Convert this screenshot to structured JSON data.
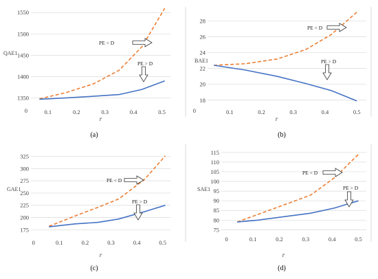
{
  "colors": {
    "upper_series": "#ed7d31",
    "lower_series": "#4472c4",
    "grid": "#d9d9d9",
    "axis": "#bfbfbf"
  },
  "chart_data": [
    {
      "panel": "(a)",
      "type": "line",
      "ylabel": "QAE1",
      "xlabel": "r",
      "xticks": [
        "0.1",
        "0.2",
        "0.3",
        "0.4",
        "0.5"
      ],
      "yticks": [
        "1350",
        "1400",
        "1450",
        "1500",
        "1550"
      ],
      "ylim": [
        1330,
        1560
      ],
      "xlim": [
        0.04,
        0.53
      ],
      "extra_label": "0",
      "series": [
        {
          "name": "PE < D",
          "style": "dashed",
          "x": [
            0.07,
            0.16,
            0.26,
            0.35,
            0.43,
            0.51
          ],
          "y": [
            1348,
            1362,
            1383,
            1415,
            1470,
            1560
          ]
        },
        {
          "name": "PE > D",
          "style": "solid",
          "x": [
            0.07,
            0.16,
            0.26,
            0.35,
            0.43,
            0.51
          ],
          "y": [
            1347,
            1350,
            1354,
            1358,
            1370,
            1390
          ]
        }
      ]
    },
    {
      "panel": "(b)",
      "type": "line",
      "ylabel": "BAE1",
      "xlabel": "r",
      "xticks": [
        "0.1",
        "0.2",
        "0.3",
        "0.4",
        "0.5"
      ],
      "yticks": [
        "18",
        "20",
        "22",
        "24",
        "26",
        "28"
      ],
      "ylim": [
        17.2,
        29.6
      ],
      "xlim": [
        0.03,
        0.53
      ],
      "extra_label": "0",
      "series": [
        {
          "name": "PE < D",
          "style": "dashed",
          "x": [
            0.05,
            0.15,
            0.25,
            0.34,
            0.42,
            0.5
          ],
          "y": [
            22.4,
            22.6,
            23.2,
            24.4,
            26.3,
            29.1
          ]
        },
        {
          "name": "PE > D",
          "style": "solid",
          "x": [
            0.05,
            0.15,
            0.25,
            0.34,
            0.42,
            0.5
          ],
          "y": [
            22.4,
            21.8,
            21.0,
            20.1,
            19.2,
            17.9
          ]
        }
      ]
    },
    {
      "panel": "(c)",
      "type": "line",
      "ylabel": "GAE1",
      "xlabel": "r",
      "xticks": [
        "0",
        "0.1",
        "0.2",
        "0.3",
        "0.4",
        "0.5"
      ],
      "yticks": [
        "175",
        "200",
        "225",
        "250",
        "275",
        "300",
        "325"
      ],
      "ylim": [
        160,
        330
      ],
      "xlim": [
        -0.01,
        0.53
      ],
      "series": [
        {
          "name": "PE < D",
          "style": "dashed",
          "x": [
            0.06,
            0.16,
            0.25,
            0.33,
            0.43,
            0.51
          ],
          "y": [
            182,
            203,
            221,
            238,
            278,
            326
          ]
        },
        {
          "name": "PE > D",
          "style": "solid",
          "x": [
            0.06,
            0.16,
            0.25,
            0.33,
            0.43,
            0.51
          ],
          "y": [
            181,
            187,
            190,
            197,
            212,
            225
          ]
        }
      ]
    },
    {
      "panel": "(d)",
      "type": "line",
      "ylabel": "SAE1",
      "xlabel": "r",
      "xticks": [
        "0",
        "0.1",
        "0.2",
        "0.3",
        "0.4",
        "0.5"
      ],
      "yticks": [
        "75",
        "80",
        "85",
        "90",
        "95",
        "100",
        "105",
        "110",
        "115"
      ],
      "ylim": [
        73,
        116
      ],
      "xlim": [
        -0.02,
        0.53
      ],
      "series": [
        {
          "name": "PE < D",
          "style": "dashed",
          "x": [
            0.04,
            0.12,
            0.22,
            0.32,
            0.41,
            0.5
          ],
          "y": [
            79,
            83,
            88,
            93,
            102,
            114
          ]
        },
        {
          "name": "PE > D",
          "style": "solid",
          "x": [
            0.04,
            0.12,
            0.22,
            0.32,
            0.41,
            0.5
          ],
          "y": [
            79,
            80,
            81.8,
            83.6,
            86.3,
            90
          ]
        }
      ]
    }
  ],
  "annotations": [
    {
      "panel": 0,
      "text": "PE < D",
      "arrow": "right"
    },
    {
      "panel": 0,
      "text": "PE > D",
      "arrow": "down"
    },
    {
      "panel": 1,
      "text": "PE < D",
      "arrow": "right"
    },
    {
      "panel": 1,
      "text": "PE > D",
      "arrow": "down"
    },
    {
      "panel": 2,
      "text": "PE < D",
      "arrow": "right"
    },
    {
      "panel": 2,
      "text": "PE > D",
      "arrow": "down"
    },
    {
      "panel": 3,
      "text": "PE < D",
      "arrow": "right"
    },
    {
      "panel": 3,
      "text": "PE > D",
      "arrow": "down"
    }
  ]
}
